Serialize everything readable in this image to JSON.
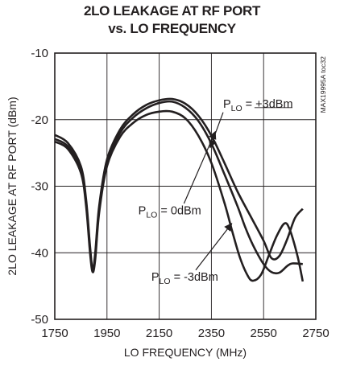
{
  "chart_data": {
    "type": "line",
    "title_line1": "2LO LEAKAGE AT RF PORT",
    "title_line2": "vs. LO FREQUENCY",
    "xlabel": "LO FREQUENCY (MHz)",
    "ylabel": "2LO LEAKAGE AT RF PORT (dBm)",
    "xlim": [
      1750,
      2750
    ],
    "ylim": [
      -50,
      -10
    ],
    "xticks": [
      1750,
      1950,
      2150,
      2350,
      2550,
      2750
    ],
    "yticks": [
      -10,
      -20,
      -30,
      -40,
      -50
    ],
    "grid": true,
    "figure_tag": "MAX19995A toc32",
    "series": [
      {
        "name": "P_LO = +3dBm",
        "label_main": "P",
        "label_sub": "LO",
        "label_rest": " = +3dBm",
        "points": [
          [
            1750,
            -22.3
          ],
          [
            1800,
            -23.5
          ],
          [
            1850,
            -27
          ],
          [
            1870,
            -32
          ],
          [
            1885,
            -39
          ],
          [
            1895,
            -42.5
          ],
          [
            1905,
            -40
          ],
          [
            1920,
            -33
          ],
          [
            1950,
            -26
          ],
          [
            2000,
            -21.5
          ],
          [
            2050,
            -19.2
          ],
          [
            2100,
            -17.8
          ],
          [
            2150,
            -17.1
          ],
          [
            2200,
            -16.9
          ],
          [
            2250,
            -17.6
          ],
          [
            2300,
            -19.4
          ],
          [
            2350,
            -22.4
          ],
          [
            2400,
            -26.5
          ],
          [
            2450,
            -30.8
          ],
          [
            2500,
            -34.5
          ],
          [
            2550,
            -38.2
          ],
          [
            2580,
            -40.8
          ],
          [
            2610,
            -40.5
          ],
          [
            2640,
            -38
          ],
          [
            2670,
            -34.8
          ],
          [
            2700,
            -33.4
          ]
        ]
      },
      {
        "name": "P_LO = 0dBm",
        "label_main": "P",
        "label_sub": "LO",
        "label_rest": " = 0dBm",
        "points": [
          [
            1750,
            -22.9
          ],
          [
            1800,
            -24
          ],
          [
            1850,
            -27.5
          ],
          [
            1870,
            -32.5
          ],
          [
            1885,
            -39.5
          ],
          [
            1895,
            -42.7
          ],
          [
            1905,
            -40.5
          ],
          [
            1920,
            -33.5
          ],
          [
            1950,
            -26.5
          ],
          [
            2000,
            -22
          ],
          [
            2050,
            -19.7
          ],
          [
            2100,
            -18.3
          ],
          [
            2150,
            -17.5
          ],
          [
            2200,
            -17.3
          ],
          [
            2250,
            -18.2
          ],
          [
            2300,
            -20.2
          ],
          [
            2350,
            -23.6
          ],
          [
            2400,
            -28.2
          ],
          [
            2450,
            -33
          ],
          [
            2480,
            -36.2
          ],
          [
            2510,
            -38.9
          ],
          [
            2550,
            -41.7
          ],
          [
            2580,
            -42.9
          ],
          [
            2610,
            -43
          ],
          [
            2640,
            -42
          ],
          [
            2660,
            -41.6
          ],
          [
            2700,
            -41.7
          ]
        ]
      },
      {
        "name": "P_LO = -3dBm",
        "label_main": "P",
        "label_sub": "LO",
        "label_rest": " = -3dBm",
        "points": [
          [
            1750,
            -23.3
          ],
          [
            1800,
            -24.4
          ],
          [
            1850,
            -28
          ],
          [
            1870,
            -33
          ],
          [
            1885,
            -40
          ],
          [
            1895,
            -42.9
          ],
          [
            1905,
            -41
          ],
          [
            1920,
            -34
          ],
          [
            1950,
            -27
          ],
          [
            2000,
            -22.6
          ],
          [
            2050,
            -20.5
          ],
          [
            2100,
            -19.3
          ],
          [
            2150,
            -18.8
          ],
          [
            2200,
            -18.8
          ],
          [
            2250,
            -19.8
          ],
          [
            2300,
            -22.4
          ],
          [
            2350,
            -26.5
          ],
          [
            2400,
            -32.5
          ],
          [
            2430,
            -36.8
          ],
          [
            2460,
            -40.8
          ],
          [
            2490,
            -43.5
          ],
          [
            2510,
            -44.2
          ],
          [
            2540,
            -43.3
          ],
          [
            2570,
            -40.4
          ],
          [
            2600,
            -37.5
          ],
          [
            2630,
            -35.6
          ],
          [
            2650,
            -36.5
          ],
          [
            2680,
            -40.5
          ],
          [
            2700,
            -44.3
          ]
        ]
      }
    ],
    "annotations": [
      {
        "series": 0,
        "label_x": 2395,
        "label_y": -18.2,
        "leader_to": [
          2515,
          -18.2
        ],
        "arrow_from": [
          2395,
          -18.9
        ],
        "arrow_to": [
          2345,
          -24.2
        ]
      },
      {
        "series": 1,
        "label_x": 2070,
        "label_y": -34.2,
        "arrow_from": [
          2245,
          -32.6
        ],
        "arrow_to": [
          2365,
          -21.8
        ]
      },
      {
        "series": 2,
        "label_x": 2120,
        "label_y": -44.2,
        "arrow_from": [
          2290,
          -42.6
        ],
        "arrow_to": [
          2428,
          -35.6
        ]
      }
    ]
  }
}
